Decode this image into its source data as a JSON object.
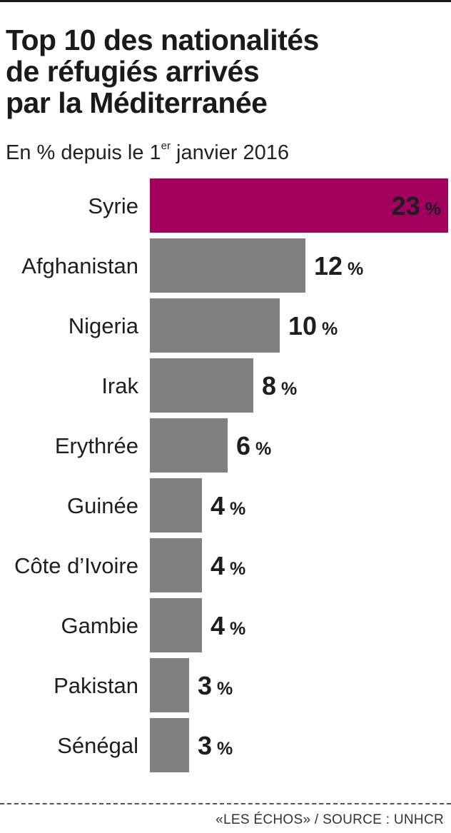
{
  "header": {
    "title_lines": [
      "Top 10 des nationalités",
      "de réfugiés arrivés",
      "par la Méditerranée"
    ],
    "subtitle_before": "En % depuis le 1",
    "subtitle_sup": "er",
    "subtitle_after": " janvier 2016"
  },
  "footer": {
    "source": "«LES ÉCHOS» / SOURCE : UNHCR"
  },
  "colors": {
    "highlight": "#a1005f",
    "bar": "#808080",
    "highlight_text": "#ffffff",
    "text": "#1e1e1e"
  },
  "chart_data": {
    "type": "bar",
    "orientation": "horizontal",
    "title": "Top 10 des nationalités de réfugiés arrivés par la Méditerranée",
    "subtitle": "En % depuis le 1er janvier 2016",
    "categories": [
      "Syrie",
      "Afghanistan",
      "Nigeria",
      "Irak",
      "Erythrée",
      "Guinée",
      "Côte d’Ivoire",
      "Gambie",
      "Pakistan",
      "Sénégal"
    ],
    "values": [
      23,
      12,
      10,
      8,
      6,
      4,
      4,
      4,
      3,
      3
    ],
    "unit": "%",
    "highlight_index": 0,
    "xlim": [
      0,
      23
    ],
    "grid": false,
    "legend": "none"
  }
}
